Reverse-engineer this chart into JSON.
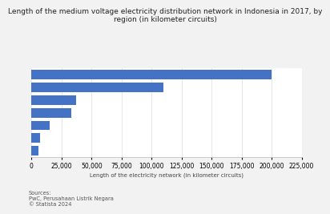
{
  "title_line1": "Length of the medium voltage electricity distribution network in Indonesia in 2017, by",
  "title_line2": "region (in kilometer circuits)",
  "bars": [
    200000,
    110000,
    37000,
    33000,
    15000,
    7000,
    6000
  ],
  "bar_color": "#4472c4",
  "xlim": [
    0,
    225000
  ],
  "xticks": [
    0,
    25000,
    50000,
    75000,
    100000,
    125000,
    150000,
    175000,
    200000,
    225000
  ],
  "xlabel": "Length of the electricity network (in kilometer circuits)",
  "source_text": "Sources:\nPwC, Perusahaan Listrik Negara\n© Statista 2024",
  "background_color": "#f2f2f2",
  "plot_background_color": "#ffffff",
  "title_fontsize": 6.5,
  "axis_fontsize": 5.5,
  "source_fontsize": 4.8
}
